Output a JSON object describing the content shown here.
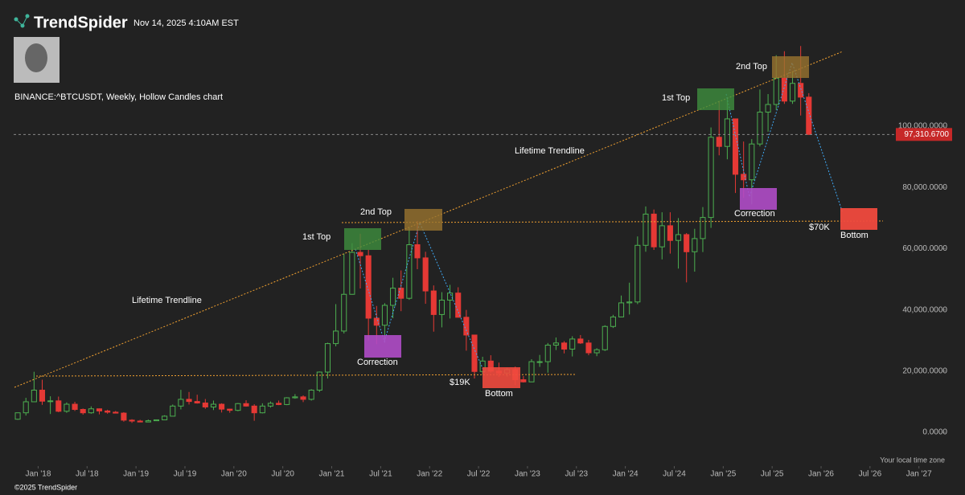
{
  "chart_data": {
    "type": "candlestick",
    "brand": "TrendSpider",
    "timestamp": "Nov 14, 2025 4:10AM EST",
    "title": "BINANCE:^BTCUSDT, Weekly, Hollow Candles chart",
    "footer": "©2025 TrendSpider",
    "timezone_note": "Your local time zone",
    "up_color": "#4caf50",
    "down_color": "#e53935",
    "x": [
      "2017-10",
      "2017-11",
      "2017-12",
      "2018-01",
      "2018-02",
      "2018-03",
      "2018-04",
      "2018-05",
      "2018-06",
      "2018-07",
      "2018-08",
      "2018-09",
      "2018-10",
      "2018-11",
      "2018-12",
      "2019-01",
      "2019-02",
      "2019-03",
      "2019-04",
      "2019-05",
      "2019-06",
      "2019-07",
      "2019-08",
      "2019-09",
      "2019-10",
      "2019-11",
      "2019-12",
      "2020-01",
      "2020-02",
      "2020-03",
      "2020-04",
      "2020-05",
      "2020-06",
      "2020-07",
      "2020-08",
      "2020-09",
      "2020-10",
      "2020-11",
      "2020-12",
      "2021-01",
      "2021-02",
      "2021-03",
      "2021-04",
      "2021-05",
      "2021-06",
      "2021-07",
      "2021-08",
      "2021-09",
      "2021-10",
      "2021-11",
      "2021-12",
      "2022-01",
      "2022-02",
      "2022-03",
      "2022-04",
      "2022-05",
      "2022-06",
      "2022-07",
      "2022-08",
      "2022-09",
      "2022-10",
      "2022-11",
      "2022-12",
      "2023-01",
      "2023-02",
      "2023-03",
      "2023-04",
      "2023-05",
      "2023-06",
      "2023-07",
      "2023-08",
      "2023-09",
      "2023-10",
      "2023-11",
      "2023-12",
      "2024-01",
      "2024-02",
      "2024-03",
      "2024-04",
      "2024-05",
      "2024-06",
      "2024-07",
      "2024-08",
      "2024-09",
      "2024-10",
      "2024-11",
      "2024-12",
      "2025-01",
      "2025-02",
      "2025-03",
      "2025-04",
      "2025-05",
      "2025-06",
      "2025-07",
      "2025-08",
      "2025-09",
      "2025-10",
      "2025-11"
    ],
    "open": [
      4300,
      6400,
      10000,
      13800,
      10200,
      10300,
      6900,
      9200,
      7500,
      6400,
      7700,
      7000,
      6600,
      6300,
      4000,
      3700,
      3400,
      3800,
      4100,
      5300,
      8600,
      10800,
      10100,
      9600,
      8300,
      9200,
      7600,
      7200,
      9400,
      8600,
      6400,
      8600,
      9500,
      9100,
      11300,
      11600,
      10800,
      13800,
      19700,
      29000,
      33100,
      45100,
      58800,
      57700,
      37300,
      35000,
      41500,
      47100,
      43800,
      61300,
      57000,
      46200,
      38500,
      43200,
      45500,
      37600,
      31800,
      19900,
      23300,
      20000,
      19400,
      20500,
      17200,
      16500,
      23100,
      23100,
      28500,
      29200,
      27200,
      30500,
      29200,
      26000,
      27000,
      34600,
      37700,
      42300,
      42600,
      61100,
      71300,
      60600,
      67500,
      62700,
      64600,
      59000,
      63300,
      70200,
      96400,
      93400,
      102400,
      84300,
      82500,
      94200,
      104600,
      107100,
      115700,
      108200,
      114000,
      109500
    ],
    "high": [
      6400,
      11300,
      19800,
      17200,
      11800,
      11700,
      9800,
      10000,
      7800,
      8500,
      7800,
      7400,
      7000,
      6600,
      4300,
      4100,
      4200,
      4100,
      5600,
      9100,
      13900,
      13200,
      12300,
      10900,
      10400,
      9500,
      7700,
      9600,
      10500,
      9200,
      9500,
      10100,
      10400,
      11500,
      12500,
      12100,
      14100,
      19900,
      29300,
      41900,
      58400,
      61800,
      64900,
      59600,
      41300,
      42200,
      50500,
      52900,
      66900,
      69000,
      59000,
      48000,
      45800,
      48200,
      47400,
      40000,
      31900,
      24700,
      25200,
      22800,
      21100,
      21500,
      18400,
      23900,
      25300,
      29200,
      31000,
      29800,
      31400,
      31800,
      30200,
      27500,
      35000,
      38400,
      44700,
      48900,
      64000,
      73800,
      72800,
      71900,
      71900,
      70000,
      65100,
      66500,
      73600,
      99600,
      108300,
      109400,
      102500,
      95000,
      95800,
      112000,
      110500,
      123200,
      124500,
      117900,
      126200,
      110800
    ],
    "low": [
      4100,
      5500,
      10700,
      9000,
      6000,
      6600,
      6400,
      7000,
      5800,
      6100,
      5900,
      6100,
      6200,
      3500,
      3100,
      3300,
      3400,
      3700,
      4100,
      5300,
      7500,
      9100,
      9400,
      7700,
      7300,
      6500,
      6400,
      6900,
      8400,
      3800,
      6200,
      8100,
      8900,
      8900,
      11000,
      9900,
      10400,
      13200,
      17600,
      28100,
      32300,
      45000,
      47000,
      30000,
      28800,
      29300,
      37300,
      39600,
      43300,
      53300,
      42000,
      32900,
      34300,
      37200,
      37600,
      26700,
      17600,
      18800,
      19500,
      18100,
      18200,
      15500,
      16300,
      16500,
      21400,
      19500,
      26900,
      25800,
      24800,
      28900,
      25200,
      24900,
      26600,
      34100,
      37600,
      38500,
      41900,
      59000,
      59600,
      56500,
      58400,
      53500,
      49000,
      52500,
      58900,
      66800,
      90500,
      89200,
      78200,
      76600,
      74500,
      93400,
      98200,
      105300,
      107300,
      107300,
      103500,
      97300
    ],
    "close": [
      6400,
      10000,
      13800,
      10200,
      10300,
      6900,
      9200,
      7500,
      6400,
      7700,
      7000,
      6600,
      6300,
      4000,
      3700,
      3400,
      3800,
      4100,
      5300,
      8600,
      10800,
      10100,
      9600,
      8300,
      9200,
      7600,
      7200,
      9400,
      8600,
      6400,
      8600,
      9500,
      9100,
      11300,
      11600,
      10800,
      13800,
      19700,
      29000,
      33100,
      45100,
      58800,
      57700,
      37300,
      35000,
      41500,
      47100,
      43800,
      61300,
      57000,
      46200,
      38500,
      43200,
      45500,
      37600,
      31800,
      19900,
      23300,
      20000,
      19400,
      20500,
      17200,
      16500,
      23100,
      23100,
      28500,
      29200,
      27200,
      30500,
      29200,
      26000,
      27000,
      34600,
      37700,
      42300,
      42600,
      61100,
      71300,
      60600,
      67500,
      62700,
      64600,
      59000,
      63300,
      70200,
      96400,
      93400,
      102400,
      84300,
      82500,
      94200,
      104600,
      107100,
      115700,
      108200,
      114000,
      109500,
      97300
    ],
    "last_price": {
      "value": 97310.67,
      "label": "97,310.6700"
    },
    "xlim": [
      "2017-10",
      "2027-03"
    ],
    "xticks": [
      {
        "value": "2018-01",
        "label": "Jan '18"
      },
      {
        "value": "2018-07",
        "label": "Jul '18"
      },
      {
        "value": "2019-01",
        "label": "Jan '19"
      },
      {
        "value": "2019-07",
        "label": "Jul '19"
      },
      {
        "value": "2020-01",
        "label": "Jan '20"
      },
      {
        "value": "2020-07",
        "label": "Jul '20"
      },
      {
        "value": "2021-01",
        "label": "Jan '21"
      },
      {
        "value": "2021-07",
        "label": "Jul '21"
      },
      {
        "value": "2022-01",
        "label": "Jan '22"
      },
      {
        "value": "2022-07",
        "label": "Jul '22"
      },
      {
        "value": "2023-01",
        "label": "Jan '23"
      },
      {
        "value": "2023-07",
        "label": "Jul '23"
      },
      {
        "value": "2024-01",
        "label": "Jan '24"
      },
      {
        "value": "2024-07",
        "label": "Jul '24"
      },
      {
        "value": "2025-01",
        "label": "Jan '25"
      },
      {
        "value": "2025-07",
        "label": "Jul '25"
      },
      {
        "value": "2026-01",
        "label": "Jan '26"
      },
      {
        "value": "2026-07",
        "label": "Jul '26"
      },
      {
        "value": "2027-01",
        "label": "Jan '27"
      }
    ],
    "ylim": [
      -11000,
      138600
    ],
    "yticks": [
      {
        "value": 0,
        "label": "0.0000"
      },
      {
        "value": 20000,
        "label": "20,000.0000"
      },
      {
        "value": 40000,
        "label": "40,000.0000"
      },
      {
        "value": 60000,
        "label": "60,000.0000"
      },
      {
        "value": 80000,
        "label": "80,000.0000"
      },
      {
        "value": 100000,
        "label": "100,000.0000"
      }
    ],
    "annotations": [
      "Lifetime Trendline",
      "1st Top",
      "2nd Top",
      "Correction",
      "$19K",
      "Bottom",
      "Lifetime Trendline",
      "1st Top",
      "2nd Top",
      "Correction",
      "$70K",
      "Bottom"
    ]
  }
}
